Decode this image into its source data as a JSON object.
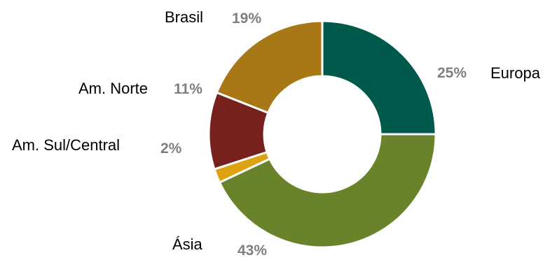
{
  "chart_data": {
    "type": "pie",
    "variant": "donut",
    "title": "",
    "legend": "none",
    "label_placement": "outside",
    "label_colors": {
      "category": "#000000",
      "percent": "#7f7f7f"
    },
    "slices": [
      {
        "label": "Europa",
        "value": 25,
        "percent_label": "25%",
        "color": "#005a4c"
      },
      {
        "label": "Ásia",
        "value": 43,
        "percent_label": "43%",
        "color": "#688329"
      },
      {
        "label": "Am. Sul/Central",
        "value": 2,
        "percent_label": "2%",
        "color": "#dda111"
      },
      {
        "label": "Am. Norte",
        "value": 11,
        "percent_label": "11%",
        "color": "#76211e"
      },
      {
        "label": "Brasil",
        "value": 19,
        "percent_label": "19%",
        "color": "#a87716"
      }
    ]
  }
}
